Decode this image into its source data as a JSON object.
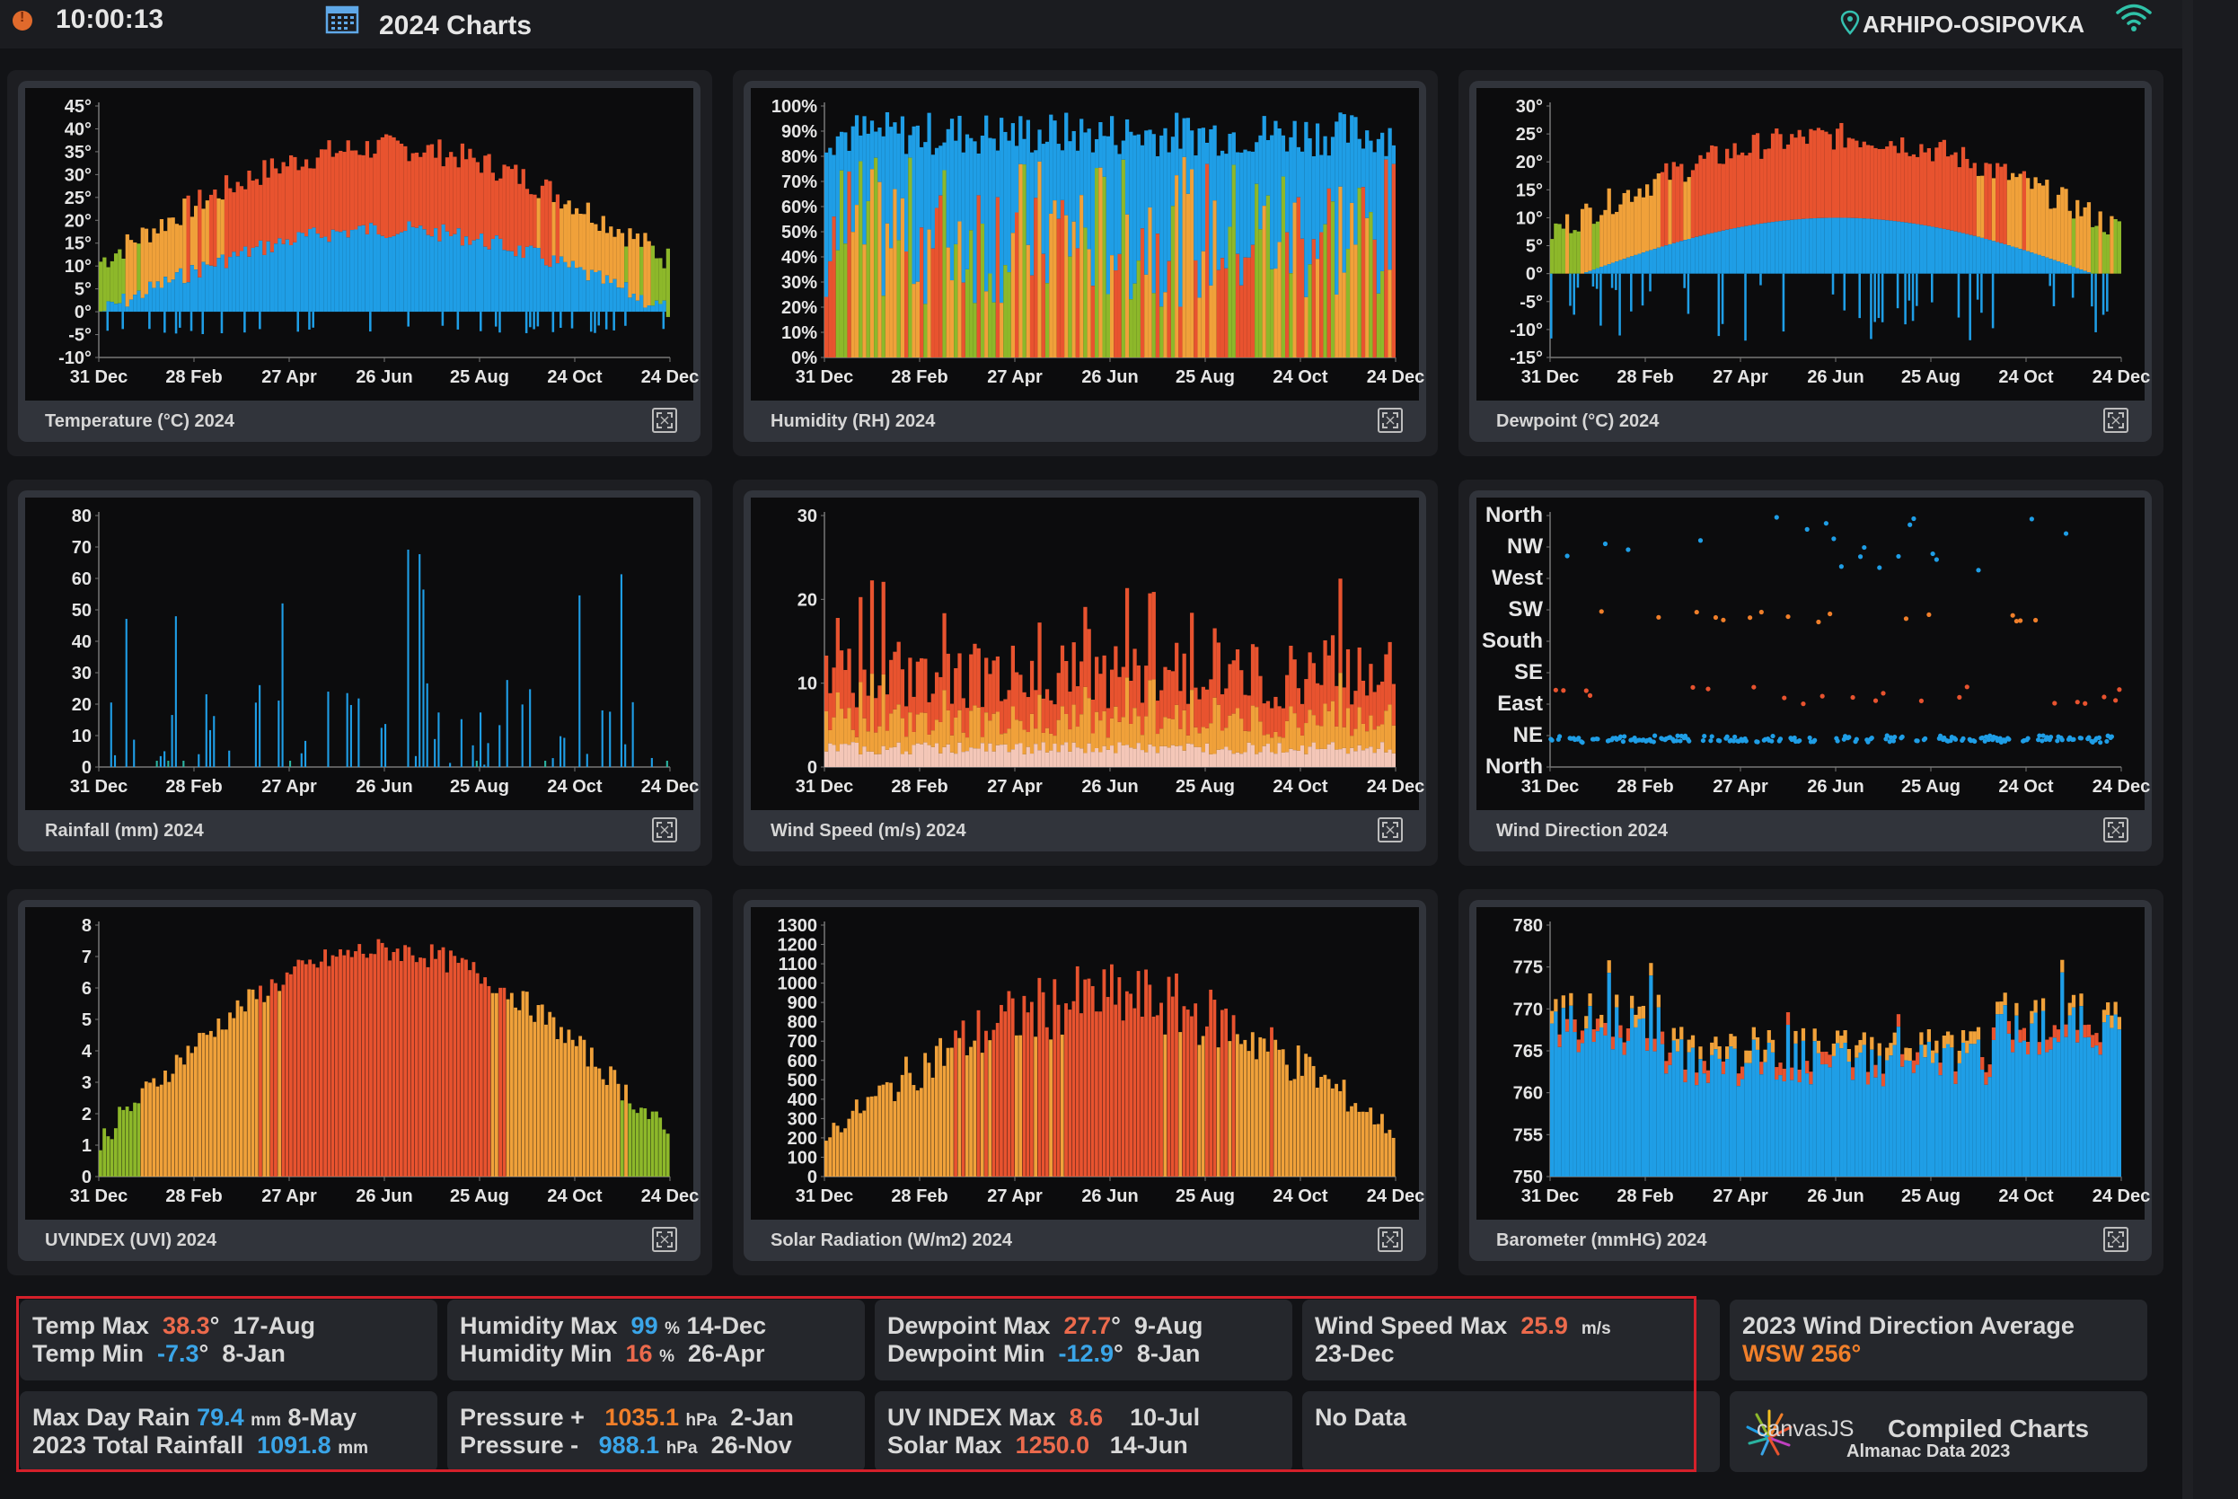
{
  "header": {
    "clock": "10:00:13",
    "title": "2024 Charts",
    "location": "ARHIPO-OSIPOVKA",
    "icons": [
      "alert-dot-icon",
      "calendar-icon",
      "location-pin-icon",
      "wifi-icon"
    ]
  },
  "x_ticks": [
    "31 Dec",
    "28 Feb",
    "27 Apr",
    "26 Jun",
    "25 Aug",
    "24 Oct",
    "24 Dec"
  ],
  "charts": [
    {
      "id": "temperature",
      "caption": "Temperature (°C) 2024",
      "type": "bar",
      "yticks": [
        "45°",
        "40°",
        "35°",
        "30°",
        "25°",
        "20°",
        "15°",
        "10°",
        "5°",
        "0°",
        "-5°",
        "-10°"
      ],
      "ylim": [
        -10,
        45
      ],
      "colors": [
        "#1f9ee6",
        "#8db82a",
        "#f0a13a",
        "#e8532f"
      ]
    },
    {
      "id": "humidity",
      "caption": "Humidity (RH) 2024",
      "type": "bar",
      "yticks": [
        "100%",
        "90%",
        "80%",
        "70%",
        "60%",
        "50%",
        "40%",
        "30%",
        "20%",
        "10%",
        "0%"
      ],
      "ylim": [
        0,
        100
      ],
      "colors": [
        "#1f9ee6",
        "#8db82a",
        "#f0a13a",
        "#e8532f"
      ]
    },
    {
      "id": "dewpoint",
      "caption": "Dewpoint (°C) 2024",
      "type": "bar",
      "yticks": [
        "30°",
        "25°",
        "20°",
        "15°",
        "10°",
        "5°",
        "0°",
        "-5°",
        "-10°",
        "-15°"
      ],
      "ylim": [
        -15,
        30
      ],
      "colors": [
        "#1f9ee6",
        "#8db82a",
        "#f0a13a",
        "#e8532f"
      ]
    },
    {
      "id": "rainfall",
      "caption": "Rainfall (mm) 2024",
      "type": "bar",
      "yticks": [
        "80",
        "70",
        "60",
        "50",
        "40",
        "30",
        "20",
        "10",
        "0"
      ],
      "ylim": [
        0,
        80
      ],
      "colors": [
        "#1f9ee6",
        "#2ab3a0"
      ]
    },
    {
      "id": "windspeed",
      "caption": "Wind Speed (m/s) 2024",
      "type": "bar",
      "yticks": [
        "30",
        "20",
        "10",
        "0"
      ],
      "ylim": [
        0,
        30
      ],
      "colors": [
        "#e8532f",
        "#f0a13a",
        "#f4c7b8"
      ]
    },
    {
      "id": "winddirection",
      "caption": "Wind Direction 2024",
      "type": "scatter",
      "yticks": [
        "North",
        "NW",
        "West",
        "SW",
        "South",
        "SE",
        "East",
        "NE",
        "North"
      ],
      "ylim": [
        0,
        360
      ],
      "colors": [
        "#1f9ee6",
        "#e8532f",
        "#f07f2a"
      ]
    },
    {
      "id": "uvindex",
      "caption": "UVINDEX (UVI) 2024",
      "type": "bar",
      "yticks": [
        "8",
        "7",
        "6",
        "5",
        "4",
        "3",
        "2",
        "1",
        "0"
      ],
      "ylim": [
        0,
        8
      ],
      "colors": [
        "#8db82a",
        "#f0a13a",
        "#e8532f"
      ]
    },
    {
      "id": "solar",
      "caption": "Solar Radiation (W/m2) 2024",
      "type": "bar",
      "yticks": [
        "1300",
        "1200",
        "1100",
        "1000",
        "900",
        "800",
        "700",
        "600",
        "500",
        "400",
        "300",
        "200",
        "100",
        "0"
      ],
      "ylim": [
        0,
        1300
      ],
      "colors": [
        "#f0a13a",
        "#e8532f"
      ]
    },
    {
      "id": "barometer",
      "caption": "Barometer (mmHG) 2024",
      "type": "bar",
      "yticks": [
        "780",
        "775",
        "770",
        "765",
        "760",
        "755",
        "750"
      ],
      "ylim": [
        750,
        780
      ],
      "colors": [
        "#1f9ee6",
        "#8db82a",
        "#f0a13a",
        "#e8532f"
      ]
    }
  ],
  "stats": {
    "temp": {
      "max_label": "Temp Max",
      "max_value": "38.3",
      "max_unit": "°",
      "max_date": "17-Aug",
      "min_label": "Temp Min",
      "min_value": "-7.3",
      "min_unit": "°",
      "min_date": "8-Jan"
    },
    "humidity": {
      "max_label": "Humidity Max",
      "max_value": "99",
      "max_unit": "%",
      "max_date": "14-Dec",
      "min_label": "Humidity Min",
      "min_value": "16",
      "min_unit": "%",
      "min_date": "26-Apr"
    },
    "dewpoint": {
      "max_label": "Dewpoint Max",
      "max_value": "27.7",
      "max_unit": "°",
      "max_date": "9-Aug",
      "min_label": "Dewpoint Min",
      "min_value": "-12.9",
      "min_unit": "°",
      "min_date": "8-Jan"
    },
    "wind": {
      "max_label": "Wind Speed Max",
      "max_value": "25.9",
      "max_unit": "m/s",
      "max_date": "23-Dec"
    },
    "rain": {
      "day_label": "Max Day Rain",
      "day_value": "79.4",
      "day_unit": "mm",
      "day_date": "8-May",
      "total_label": "2023 Total Rainfall",
      "total_value": "1091.8",
      "total_unit": "mm"
    },
    "pressure": {
      "max_label": "Pressure +",
      "max_value": "1035.1",
      "max_unit": "hPa",
      "max_date": "2-Jan",
      "min_label": "Pressure -",
      "min_value": "988.1",
      "min_unit": "hPa",
      "min_date": "26-Nov"
    },
    "uv": {
      "uv_label": "UV INDEX Max",
      "uv_value": "8.6",
      "uv_date": "10-Jul",
      "solar_label": "Solar Max",
      "solar_value": "1250.0",
      "solar_date": "14-Jun"
    },
    "nodata": {
      "text": "No Data"
    },
    "winddir": {
      "title": "2023 Wind Direction Average",
      "value": "WSW 256°"
    },
    "footer": {
      "brand": "canvasJS",
      "title": "Compiled Charts",
      "subtitle": "Almanac Data 2023"
    }
  }
}
